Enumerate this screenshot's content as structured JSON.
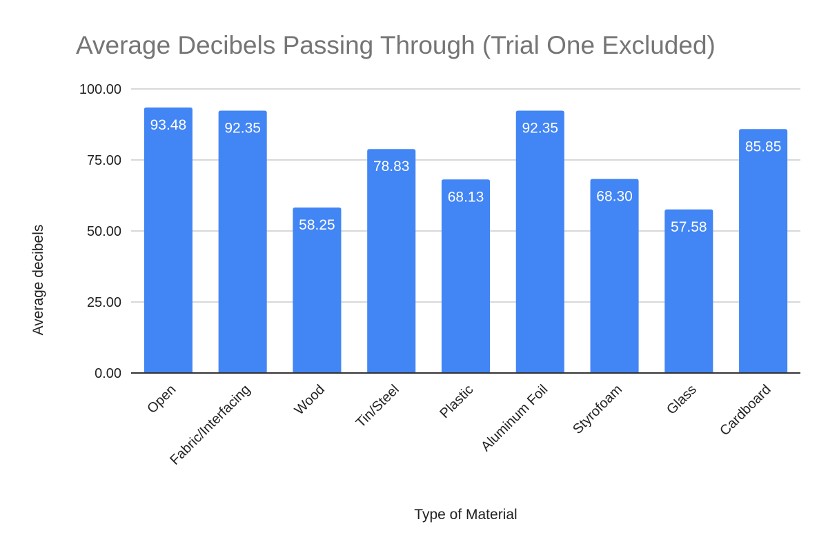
{
  "chart_data": {
    "type": "bar",
    "title": "Average Decibels Passing Through (Trial One Excluded)",
    "xlabel": "Type of Material",
    "ylabel": "Average decibels",
    "categories": [
      "Open",
      "Fabric/Interfacing",
      "Wood",
      "Tin/Steel",
      "Plastic",
      "Aluminum Foil",
      "Styrofoam",
      "Glass",
      "Cardboard"
    ],
    "values": [
      93.48,
      92.35,
      58.25,
      78.83,
      68.13,
      92.35,
      68.3,
      57.58,
      85.85
    ],
    "data_labels": [
      "93.48",
      "92.35",
      "58.25",
      "78.83",
      "68.13",
      "92.35",
      "68.30",
      "57.58",
      "85.85"
    ],
    "ylim": [
      0,
      100
    ],
    "y_ticks": [
      0,
      25,
      50,
      75,
      100
    ],
    "y_tick_labels": [
      "0.00",
      "25.00",
      "50.00",
      "75.00",
      "100.00"
    ],
    "grid": true,
    "legend": "none",
    "colors": {
      "bar": "#4285f4",
      "grid": "#cccccc",
      "axis": "#333333",
      "title": "#757575",
      "text": "#222222",
      "data_label": "#ffffff"
    }
  }
}
